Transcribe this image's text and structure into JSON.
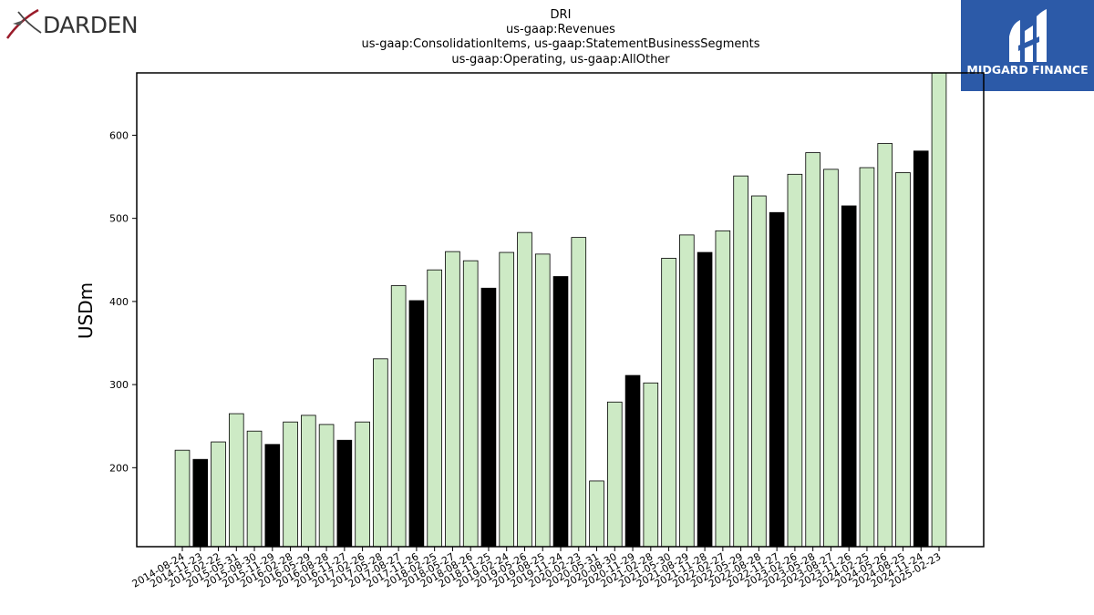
{
  "logos": {
    "left_brand": "DARDEN",
    "right_brand": "MIDGARD FINANCE",
    "right_bg_color": "#2c5aa8"
  },
  "colors": {
    "bar_light": "#cdeac5",
    "bar_dark": "#000000",
    "bar_stroke": "#000000"
  },
  "chart_data": {
    "type": "bar",
    "title_lines": [
      "DRI",
      "us-gaap:Revenues",
      "us-gaap:ConsolidationItems, us-gaap:StatementBusinessSegments",
      "us-gaap:Operating, us-gaap:AllOther"
    ],
    "ylabel": "USDm",
    "xlabel": "",
    "ylim": [
      105,
      675
    ],
    "yticks": [
      200,
      300,
      400,
      500,
      600
    ],
    "grid": false,
    "categories": [
      "2014-08-24",
      "2014-11-23",
      "2015-02-22",
      "2015-05-31",
      "2015-08-30",
      "2015-11-29",
      "2016-02-28",
      "2016-05-29",
      "2016-08-28",
      "2016-11-27",
      "2017-02-26",
      "2017-05-28",
      "2017-08-27",
      "2017-11-26",
      "2018-02-25",
      "2018-05-27",
      "2018-08-26",
      "2018-11-25",
      "2019-02-24",
      "2019-05-26",
      "2019-08-25",
      "2019-11-24",
      "2020-02-23",
      "2020-05-31",
      "2020-08-30",
      "2020-11-29",
      "2021-02-28",
      "2021-05-30",
      "2021-08-29",
      "2021-11-28",
      "2022-02-27",
      "2022-05-29",
      "2022-08-28",
      "2022-11-27",
      "2023-02-26",
      "2023-05-28",
      "2023-08-27",
      "2023-11-26",
      "2024-02-25",
      "2024-05-26",
      "2024-08-25",
      "2024-11-24",
      "2025-02-23"
    ],
    "values": [
      221,
      210,
      231,
      265,
      244,
      228,
      255,
      263,
      252,
      233,
      255,
      331,
      419,
      401,
      438,
      460,
      449,
      416,
      459,
      483,
      457,
      430,
      477,
      184,
      279,
      311,
      302,
      452,
      480,
      459,
      485,
      551,
      527,
      507,
      553,
      579,
      559,
      515,
      561,
      590,
      555,
      581,
      675
    ],
    "highlighted": [
      false,
      true,
      false,
      false,
      false,
      true,
      false,
      false,
      false,
      true,
      false,
      false,
      false,
      true,
      false,
      false,
      false,
      true,
      false,
      false,
      false,
      true,
      false,
      false,
      false,
      true,
      false,
      false,
      false,
      true,
      false,
      false,
      false,
      true,
      false,
      false,
      false,
      true,
      false,
      false,
      false,
      true,
      false
    ]
  }
}
